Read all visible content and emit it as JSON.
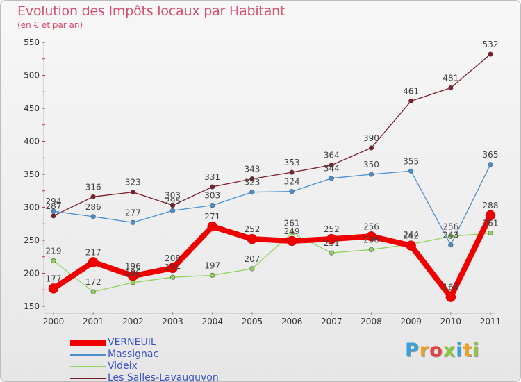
{
  "header": {
    "title": "Evolution des Impôts locaux par Habitant",
    "subtitle": "(en € et par an)"
  },
  "brand": {
    "letters": [
      "P",
      "r",
      "o",
      "x",
      "i",
      "t",
      "i"
    ],
    "colors": [
      "#3aa0d8",
      "#f0a020",
      "#e84040",
      "#8cc63f",
      "#3aa0d8",
      "#f0a020",
      "#8cc63f"
    ]
  },
  "chart_data": {
    "type": "line",
    "title": "Evolution des Impôts locaux par Habitant",
    "subtitle": "(en € et par an)",
    "xlabel": "",
    "ylabel": "",
    "categories": [
      "2000",
      "2001",
      "2002",
      "2003",
      "2004",
      "2005",
      "2006",
      "2007",
      "2008",
      "2009",
      "2010",
      "2011"
    ],
    "ylim": [
      150,
      550
    ],
    "yticks": [
      150,
      200,
      250,
      300,
      350,
      400,
      450,
      500,
      550
    ],
    "grid": false,
    "legend_position": "bottom-left",
    "series": [
      {
        "name": "Les Salles-Lavauguyon",
        "color": "#7a1f2b",
        "values": [
          287,
          316,
          323,
          303,
          331,
          343,
          353,
          364,
          390,
          461,
          481,
          532
        ],
        "labels": [
          "287",
          "316",
          "323",
          "303",
          "331",
          "343",
          "353",
          "364",
          "390",
          "461",
          "481",
          "532"
        ]
      },
      {
        "name": "Massignac",
        "color": "#4a8fcf",
        "values": [
          294,
          286,
          277,
          295,
          303,
          323,
          324,
          344,
          350,
          355,
          243,
          365
        ],
        "labels": [
          "294",
          "286",
          "277",
          "295",
          "303",
          "323",
          "324",
          "344",
          "350",
          "355",
          "243",
          "365"
        ]
      },
      {
        "name": "Videix",
        "color": "#8fd35a",
        "values": [
          219,
          172,
          186,
          194,
          197,
          207,
          261,
          231,
          236,
          244,
          256,
          261
        ],
        "labels": [
          "219",
          "172",
          "186",
          "194",
          "197",
          "207",
          "261",
          "231",
          "236",
          "244",
          "256",
          "261"
        ]
      },
      {
        "name": "VERNEUIL",
        "color": "#ee0000",
        "values": [
          177,
          217,
          196,
          208,
          271,
          252,
          249,
          252,
          256,
          242,
          164,
          288
        ],
        "labels": [
          "177",
          "217",
          "196",
          "208",
          "271",
          "252",
          "249",
          "252",
          "256",
          "242",
          "164",
          "288"
        ]
      }
    ],
    "legend": [
      "VERNEUIL",
      "Massignac",
      "Videix",
      "Les Salles-Lavauguyon"
    ]
  }
}
